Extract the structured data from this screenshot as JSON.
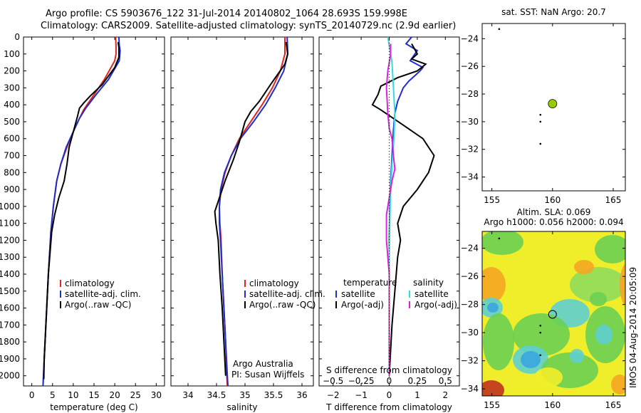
{
  "header": {
    "line1": "Argo profile: CS 5903676_122 31-Jul-2014 20140802_1064 28.693S 159.998E",
    "line2": "Climatology: CARS2009. Satellite-adjusted climatology: synTS_20140729.nc (2.9d earlier)"
  },
  "depth_ticks": [
    0,
    100,
    200,
    300,
    400,
    500,
    600,
    700,
    800,
    900,
    1000,
    1100,
    1200,
    1300,
    1400,
    1500,
    1600,
    1700,
    1800,
    1900,
    2000
  ],
  "colors": {
    "climatology": "#e3231c",
    "satellite": "#1e2ecc",
    "argo": "#000000",
    "cyan": "#33dddd",
    "magenta": "#e020e0",
    "lime": "#99cc00"
  },
  "chart_data": [
    {
      "type": "line",
      "xlabel": "temperature (deg C)",
      "xlim": [
        -2,
        32
      ],
      "x_ticks": [
        0,
        5,
        10,
        15,
        20,
        25,
        30
      ],
      "ylim": [
        2060,
        0
      ],
      "legend": [
        "climatology",
        "satellite-adj. clim.",
        "Argo(..raw -QC)"
      ],
      "series": [
        {
          "name": "climatology",
          "color": "#e3231c",
          "points": [
            [
              20.2,
              0
            ],
            [
              20.3,
              50
            ],
            [
              20.3,
              100
            ],
            [
              20.0,
              140
            ],
            [
              17.5,
              250
            ],
            [
              15,
              340
            ],
            [
              12.5,
              430
            ],
            [
              10.5,
              530
            ],
            [
              8.5,
              650
            ],
            [
              7,
              750
            ],
            [
              6,
              850
            ],
            [
              5.2,
              1000
            ],
            [
              4.6,
              1150
            ],
            [
              4.0,
              1400
            ],
            [
              3.5,
              1650
            ],
            [
              3.0,
              1900
            ],
            [
              2.7,
              2060
            ]
          ]
        },
        {
          "name": "satellite-adj. clim.",
          "color": "#1e2ecc",
          "points": [
            [
              21.0,
              0
            ],
            [
              21.1,
              50
            ],
            [
              21.3,
              80
            ],
            [
              21.1,
              140
            ],
            [
              18.5,
              250
            ],
            [
              15.5,
              340
            ],
            [
              13,
              420
            ],
            [
              11.5,
              480
            ],
            [
              9.8,
              570
            ],
            [
              8.3,
              650
            ],
            [
              7,
              750
            ],
            [
              6,
              850
            ],
            [
              5.2,
              1000
            ],
            [
              4.6,
              1150
            ],
            [
              4.0,
              1400
            ],
            [
              3.5,
              1650
            ],
            [
              3.0,
              1900
            ],
            [
              2.7,
              2060
            ]
          ]
        },
        {
          "name": "Argo(..raw -QC)",
          "color": "#000000",
          "points": [
            [
              20.8,
              30
            ],
            [
              21.0,
              60
            ],
            [
              21.0,
              120
            ],
            [
              20.0,
              180
            ],
            [
              17,
              280
            ],
            [
              14,
              350
            ],
            [
              12.5,
              390
            ],
            [
              11.5,
              420
            ],
            [
              11,
              470
            ],
            [
              10,
              560
            ],
            [
              9,
              650
            ],
            [
              8.5,
              750
            ],
            [
              7.8,
              850
            ],
            [
              6.5,
              950
            ],
            [
              5.5,
              1050
            ],
            [
              4.8,
              1150
            ],
            [
              4.0,
              1400
            ],
            [
              3.5,
              1650
            ],
            [
              3.0,
              1900
            ],
            [
              2.9,
              2020
            ]
          ]
        }
      ]
    },
    {
      "type": "line",
      "xlabel": "salinity",
      "xlim": [
        33.7,
        36.2
      ],
      "x_ticks": [
        34,
        34.5,
        35,
        35.5,
        36
      ],
      "ylim": [
        2060,
        0
      ],
      "legend": [
        "climatology",
        "satellite-adj. clim.",
        "Argo(..raw -QC)"
      ],
      "annotation": [
        "Argo Australia",
        "PI: Susan Wijffels"
      ],
      "series": [
        {
          "name": "climatology",
          "color": "#e3231c",
          "points": [
            [
              35.7,
              0
            ],
            [
              35.7,
              100
            ],
            [
              35.62,
              200
            ],
            [
              35.48,
              300
            ],
            [
              35.3,
              400
            ],
            [
              35.1,
              500
            ],
            [
              34.9,
              600
            ],
            [
              34.76,
              700
            ],
            [
              34.65,
              800
            ],
            [
              34.58,
              900
            ],
            [
              34.55,
              1000
            ],
            [
              34.56,
              1100
            ],
            [
              34.58,
              1200
            ],
            [
              34.6,
              1400
            ],
            [
              34.63,
              1600
            ],
            [
              34.66,
              1800
            ],
            [
              34.68,
              2000
            ],
            [
              34.69,
              2060
            ]
          ]
        },
        {
          "name": "satellite-adj. clim.",
          "color": "#1e2ecc",
          "points": [
            [
              35.74,
              0
            ],
            [
              35.75,
              100
            ],
            [
              35.68,
              200
            ],
            [
              35.53,
              300
            ],
            [
              35.36,
              400
            ],
            [
              35.15,
              500
            ],
            [
              34.92,
              600
            ],
            [
              34.76,
              700
            ],
            [
              34.64,
              800
            ],
            [
              34.57,
              900
            ],
            [
              34.55,
              1000
            ],
            [
              34.55,
              1100
            ],
            [
              34.57,
              1200
            ],
            [
              34.6,
              1400
            ],
            [
              34.63,
              1600
            ],
            [
              34.66,
              1800
            ],
            [
              34.69,
              2000
            ],
            [
              34.7,
              2060
            ]
          ]
        },
        {
          "name": "Argo(..raw -QC)",
          "color": "#000000",
          "points": [
            [
              35.72,
              30
            ],
            [
              35.75,
              100
            ],
            [
              35.7,
              160
            ],
            [
              35.45,
              280
            ],
            [
              35.25,
              380
            ],
            [
              35.1,
              440
            ],
            [
              35.0,
              500
            ],
            [
              34.9,
              620
            ],
            [
              34.8,
              720
            ],
            [
              34.65,
              850
            ],
            [
              34.55,
              950
            ],
            [
              34.47,
              1030
            ],
            [
              34.49,
              1100
            ],
            [
              34.53,
              1200
            ],
            [
              34.56,
              1400
            ],
            [
              34.6,
              1600
            ],
            [
              34.63,
              1800
            ],
            [
              34.66,
              2000
            ]
          ]
        }
      ]
    },
    {
      "type": "line",
      "xlabel_top": "S difference from climatology",
      "xlabel": "T difference from climatology",
      "xlim": [
        -2.5,
        2.5
      ],
      "x_ticks": [
        -2,
        -1,
        0,
        1,
        2
      ],
      "x_ticks_s": [
        -0.5,
        -0.25,
        0,
        0.25,
        0.5
      ],
      "ylim": [
        2060,
        0
      ],
      "legend_titles": [
        "temperature",
        "salinity"
      ],
      "legend": [
        "satellite",
        "Argo(-adj)",
        "satellite",
        "Argo(-adj)"
      ],
      "series": [
        {
          "name": "satellite",
          "color": "#1e2ecc",
          "points": [
            [
              0.8,
              0
            ],
            [
              0.6,
              40
            ],
            [
              1.0,
              80
            ],
            [
              0.75,
              140
            ],
            [
              1.2,
              180
            ],
            [
              1.1,
              200
            ],
            [
              0.9,
              230
            ],
            [
              0.7,
              260
            ],
            [
              0.5,
              300
            ],
            [
              0.3,
              380
            ],
            [
              0.2,
              450
            ],
            [
              0.15,
              550
            ],
            [
              0.1,
              700
            ],
            [
              0.05,
              850
            ],
            [
              0.02,
              1000
            ],
            [
              0,
              1200
            ],
            [
              0,
              1500
            ],
            [
              0,
              2000
            ]
          ]
        },
        {
          "name": "Argo(-adj)",
          "color": "#000000",
          "points": [
            [
              0.8,
              40
            ],
            [
              1.0,
              100
            ],
            [
              0.8,
              130
            ],
            [
              1.3,
              160
            ],
            [
              1.0,
              200
            ],
            [
              0.3,
              240
            ],
            [
              -0.3,
              290
            ],
            [
              -0.4,
              340
            ],
            [
              -0.6,
              400
            ],
            [
              -0.3,
              430
            ],
            [
              0.5,
              520
            ],
            [
              1.2,
              600
            ],
            [
              1.6,
              700
            ],
            [
              1.4,
              800
            ],
            [
              1.0,
              900
            ],
            [
              0.5,
              1000
            ],
            [
              0.3,
              1100
            ],
            [
              0.4,
              1200
            ],
            [
              0.3,
              1300
            ],
            [
              0.2,
              1500
            ],
            [
              0.1,
              1700
            ],
            [
              0,
              2000
            ]
          ]
        },
        {
          "name": "satellite",
          "color": "#33dddd",
          "points": [
            [
              -0.05,
              0
            ],
            [
              0,
              50
            ],
            [
              0.1,
              150
            ],
            [
              0.15,
              300
            ],
            [
              0.2,
              450
            ],
            [
              0.17,
              600
            ],
            [
              0.1,
              750
            ],
            [
              0.05,
              900
            ],
            [
              0.02,
              1100
            ],
            [
              0,
              1300
            ],
            [
              0,
              2000
            ]
          ]
        },
        {
          "name": "Argo(-adj)",
          "color": "#e020e0",
          "points": [
            [
              0.05,
              40
            ],
            [
              0.05,
              100
            ],
            [
              -0.05,
              200
            ],
            [
              -0.1,
              300
            ],
            [
              -0.05,
              450
            ],
            [
              0,
              540
            ],
            [
              0.1,
              600
            ],
            [
              0.15,
              700
            ],
            [
              0.2,
              780
            ],
            [
              0.1,
              850
            ],
            [
              0,
              950
            ],
            [
              -0.1,
              1050
            ],
            [
              -0.1,
              1200
            ],
            [
              0,
              1400
            ],
            [
              0,
              1600
            ],
            [
              0,
              2000
            ]
          ]
        }
      ]
    },
    {
      "type": "scatter",
      "title": "sat. SST: NaN Argo: 20.7",
      "xlim": [
        154.2,
        166
      ],
      "ylim": [
        -35,
        -22.9
      ],
      "x_ticks": [
        155,
        160,
        165
      ],
      "y_ticks": [
        -24,
        -26,
        -28,
        -30,
        -32,
        -34
      ],
      "marker": {
        "x": 160.0,
        "y": -28.7,
        "color": "#99cc00"
      },
      "points": [
        [
          155.6,
          -23.3
        ],
        [
          159.0,
          -29.5
        ],
        [
          159.0,
          -30.0
        ],
        [
          159.0,
          -31.6
        ]
      ]
    },
    {
      "type": "heatmap",
      "title_lines": [
        "Altim. SLA: 0.069",
        "Argo h1000: 0.056 h2000: 0.094"
      ],
      "xlim": [
        154.2,
        166
      ],
      "ylim": [
        -34.5,
        -22.8
      ],
      "x_ticks": [
        155,
        160,
        165
      ],
      "y_ticks": [
        -24,
        -26,
        -28,
        -30,
        -32,
        -34
      ],
      "marker": {
        "x": 160.0,
        "y": -28.7
      },
      "points": [
        [
          155.6,
          -23.3
        ],
        [
          159.0,
          -29.5
        ],
        [
          159.0,
          -30.0
        ],
        [
          159.0,
          -31.6
        ]
      ]
    }
  ],
  "side_stamp": "IMOS 04-Aug-2014 20:05:09"
}
